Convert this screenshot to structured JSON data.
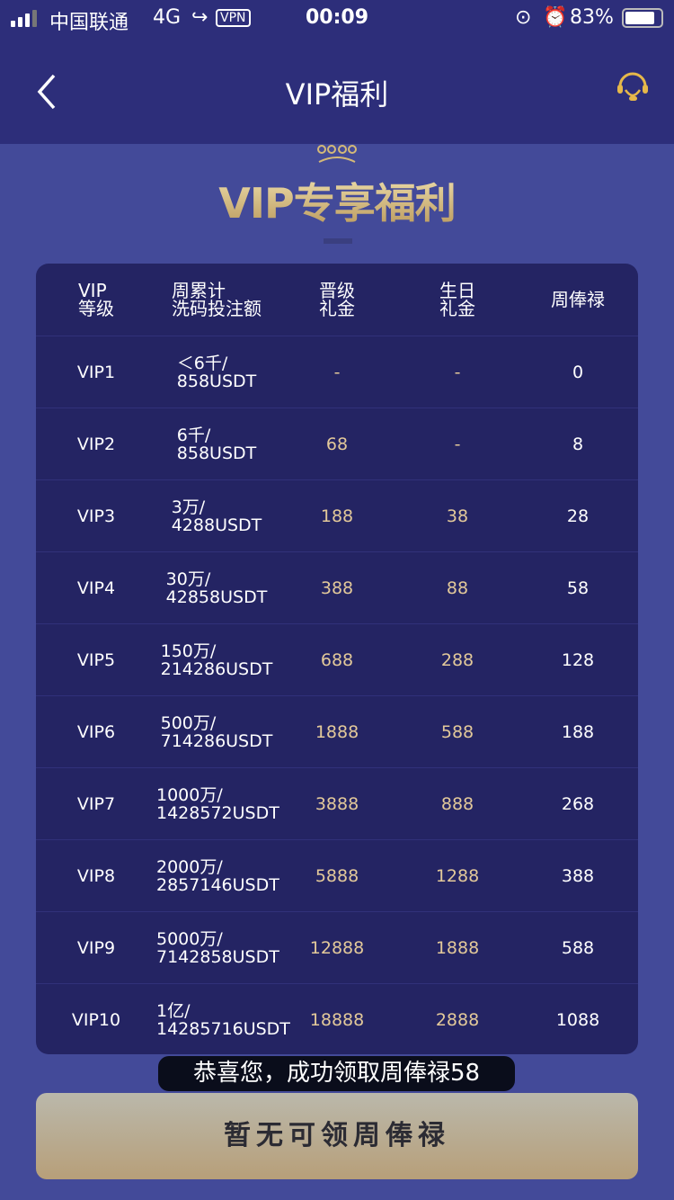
{
  "status_bar": {
    "carrier": "中国联通",
    "network": "4G",
    "vpn": "VPN",
    "time": "00:09",
    "battery": "83%"
  },
  "header": {
    "title": "VIP福利",
    "back_icon": "chevron-left-icon",
    "service_icon": "headset-icon"
  },
  "banner": {
    "title": "VIP专享福利"
  },
  "table": {
    "headers": [
      "VIP\n等级",
      "周累计\n洗码投注额",
      "晋级\n礼金",
      "生日\n礼金",
      "周俸禄"
    ],
    "rows": [
      [
        "VIP1",
        "＜6千/\n858USDT",
        "-",
        "-",
        "0"
      ],
      [
        "VIP2",
        "6千/\n858USDT",
        "68",
        "-",
        "8"
      ],
      [
        "VIP3",
        "3万/\n4288USDT",
        "188",
        "38",
        "28"
      ],
      [
        "VIP4",
        "30万/\n42858USDT",
        "388",
        "88",
        "58"
      ],
      [
        "VIP5",
        "150万/\n214286USDT",
        "688",
        "288",
        "128"
      ],
      [
        "VIP6",
        "500万/\n714286USDT",
        "1888",
        "588",
        "188"
      ],
      [
        "VIP7",
        "1000万/\n1428572USDT",
        "3888",
        "888",
        "268"
      ],
      [
        "VIP8",
        "2000万/\n2857146USDT",
        "5888",
        "1288",
        "388"
      ],
      [
        "VIP9",
        "5000万/\n7142858USDT",
        "12888",
        "1888",
        "588"
      ],
      [
        "VIP10",
        "1亿/\n14285716USDT",
        "18888",
        "2888",
        "1088"
      ]
    ]
  },
  "toast": "恭喜您，成功领取周俸禄58",
  "claim_button": "暂无可领周俸禄",
  "colors": {
    "nav": "#2d2e7a",
    "background": "#434a99",
    "table": "#242463",
    "gold": "#e3c99a"
  }
}
